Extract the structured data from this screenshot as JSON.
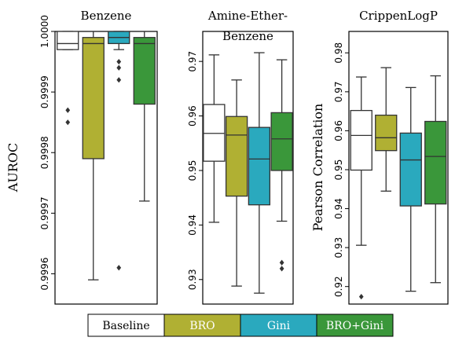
{
  "legend": [
    {
      "label": "Baseline",
      "color": "#ffffff",
      "text_color": "#000000"
    },
    {
      "label": "BRO",
      "color": "#b0b033",
      "text_color": "#ffffff"
    },
    {
      "label": "Gini",
      "color": "#2aa9be",
      "text_color": "#ffffff"
    },
    {
      "label": "BRO+Gini",
      "color": "#3a973a",
      "text_color": "#ffffff"
    }
  ],
  "chart_data": [
    {
      "type": "boxplot",
      "title": "Benzene",
      "ylabel": "AUROC",
      "ylim": [
        0.99955,
        1.0
      ],
      "yticks": [
        "0.9996",
        "0.9997",
        "0.9998",
        "0.9999",
        "1.0000"
      ],
      "ytick_values": [
        0.9996,
        0.9997,
        0.9998,
        0.9999,
        1.0
      ],
      "series": [
        {
          "name": "Baseline",
          "color": "#ffffff",
          "whisker_low": 0.99997,
          "q1": 0.99997,
          "median": 0.99998,
          "q3": 1.0,
          "whisker_high": 1.0,
          "outliers": [
            0.99987,
            0.99985
          ]
        },
        {
          "name": "BRO",
          "color": "#b0b033",
          "whisker_low": 0.99959,
          "q1": 0.99979,
          "median": 0.99998,
          "q3": 0.99999,
          "whisker_high": 1.0,
          "outliers": []
        },
        {
          "name": "Gini",
          "color": "#2aa9be",
          "whisker_low": 0.99997,
          "q1": 0.99998,
          "median": 0.99999,
          "q3": 1.0,
          "whisker_high": 1.0,
          "outliers": [
            0.99995,
            0.99994,
            0.99992,
            0.99961
          ]
        },
        {
          "name": "BRO+Gini",
          "color": "#3a973a",
          "whisker_low": 0.99972,
          "q1": 0.99988,
          "median": 0.99998,
          "q3": 0.99999,
          "whisker_high": 1.0,
          "outliers": []
        }
      ]
    },
    {
      "type": "boxplot",
      "title": "Amine-Ether-\nBenzene",
      "ylabel": "",
      "ylim": [
        0.9255,
        0.9755
      ],
      "yticks": [
        "0.93",
        "0.94",
        "0.95",
        "0.96",
        "0.97"
      ],
      "ytick_values": [
        0.93,
        0.94,
        0.95,
        0.96,
        0.97
      ],
      "series": [
        {
          "name": "Baseline",
          "color": "#ffffff",
          "whisker_low": 0.9405,
          "q1": 0.9517,
          "median": 0.9568,
          "q3": 0.9621,
          "whisker_high": 0.9712,
          "outliers": []
        },
        {
          "name": "BRO",
          "color": "#b0b033",
          "whisker_low": 0.9288,
          "q1": 0.9453,
          "median": 0.9565,
          "q3": 0.9599,
          "whisker_high": 0.9666,
          "outliers": []
        },
        {
          "name": "Gini",
          "color": "#2aa9be",
          "whisker_low": 0.9275,
          "q1": 0.9437,
          "median": 0.9521,
          "q3": 0.9579,
          "whisker_high": 0.9716,
          "outliers": []
        },
        {
          "name": "BRO+Gini",
          "color": "#3a973a",
          "whisker_low": 0.9407,
          "q1": 0.95,
          "median": 0.9558,
          "q3": 0.9606,
          "whisker_high": 0.9703,
          "outliers": [
            0.9331,
            0.932
          ]
        }
      ]
    },
    {
      "type": "boxplot",
      "title": "CrippenLogP",
      "ylabel": "Pearson Correlation",
      "ylim": [
        0.9155,
        0.9855
      ],
      "yticks": [
        "0.92",
        "0.93",
        "0.94",
        "0.95",
        "0.96",
        "0.97",
        "0.98"
      ],
      "ytick_values": [
        0.92,
        0.93,
        0.94,
        0.95,
        0.96,
        0.97,
        0.98
      ],
      "series": [
        {
          "name": "Baseline",
          "color": "#ffffff",
          "whisker_low": 0.9306,
          "q1": 0.9499,
          "median": 0.9588,
          "q3": 0.9652,
          "whisker_high": 0.9738,
          "outliers": [
            0.9174
          ]
        },
        {
          "name": "BRO",
          "color": "#b0b033",
          "whisker_low": 0.9445,
          "q1": 0.9549,
          "median": 0.9582,
          "q3": 0.964,
          "whisker_high": 0.9762,
          "outliers": []
        },
        {
          "name": "Gini",
          "color": "#2aa9be",
          "whisker_low": 0.9188,
          "q1": 0.9407,
          "median": 0.9525,
          "q3": 0.9594,
          "whisker_high": 0.9711,
          "outliers": []
        },
        {
          "name": "BRO+Gini",
          "color": "#3a973a",
          "whisker_low": 0.921,
          "q1": 0.9412,
          "median": 0.9534,
          "q3": 0.9624,
          "whisker_high": 0.9741,
          "outliers": []
        }
      ]
    }
  ]
}
